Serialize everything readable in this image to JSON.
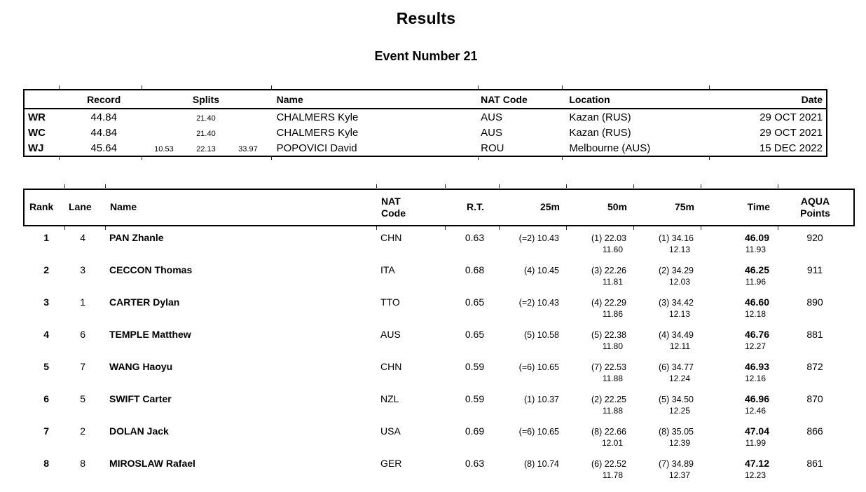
{
  "page": {
    "title": "Results",
    "subtitle": "Event Number 21"
  },
  "records_table": {
    "headers": {
      "type": "",
      "record": "Record",
      "splits": "Splits",
      "name": "Name",
      "nat_code": "NAT Code",
      "location": "Location",
      "date": "Date"
    },
    "rows": [
      {
        "type": "WR",
        "record": "44.84",
        "splits": [
          "",
          "21.40",
          ""
        ],
        "name": "CHALMERS Kyle",
        "nat_code": "AUS",
        "location": "Kazan (RUS)",
        "date": "29 OCT 2021"
      },
      {
        "type": "WC",
        "record": "44.84",
        "splits": [
          "",
          "21.40",
          ""
        ],
        "name": "CHALMERS Kyle",
        "nat_code": "AUS",
        "location": "Kazan (RUS)",
        "date": "29 OCT 2021"
      },
      {
        "type": "WJ",
        "record": "45.64",
        "splits": [
          "10.53",
          "22.13",
          "33.97"
        ],
        "name": "POPOVICI David",
        "nat_code": "ROU",
        "location": "Melbourne (AUS)",
        "date": "15 DEC 2022"
      }
    ]
  },
  "results_table": {
    "headers": {
      "rank": "Rank",
      "lane": "Lane",
      "name": "Name",
      "nat_code": "NAT\nCode",
      "rt": "R.T.",
      "m25": "25m",
      "m50": "50m",
      "m75": "75m",
      "time": "Time",
      "points": "AQUA\nPoints"
    },
    "rows": [
      {
        "rank": "1",
        "lane": "4",
        "name": "PAN Zhanle",
        "nat_code": "CHN",
        "rt": "0.63",
        "m25": "(=2) 10.43",
        "m50": "(1) 22.03",
        "m50_lap": "11.60",
        "m75": "(1) 34.16",
        "m75_lap": "12.13",
        "time": "46.09",
        "time_lap": "11.93",
        "points": "920"
      },
      {
        "rank": "2",
        "lane": "3",
        "name": "CECCON Thomas",
        "nat_code": "ITA",
        "rt": "0.68",
        "m25": "(4) 10.45",
        "m50": "(3) 22.26",
        "m50_lap": "11.81",
        "m75": "(2) 34.29",
        "m75_lap": "12.03",
        "time": "46.25",
        "time_lap": "11.96",
        "points": "911"
      },
      {
        "rank": "3",
        "lane": "1",
        "name": "CARTER Dylan",
        "nat_code": "TTO",
        "rt": "0.65",
        "m25": "(=2) 10.43",
        "m50": "(4) 22.29",
        "m50_lap": "11.86",
        "m75": "(3) 34.42",
        "m75_lap": "12.13",
        "time": "46.60",
        "time_lap": "12.18",
        "points": "890"
      },
      {
        "rank": "4",
        "lane": "6",
        "name": "TEMPLE Matthew",
        "nat_code": "AUS",
        "rt": "0.65",
        "m25": "(5) 10.58",
        "m50": "(5) 22.38",
        "m50_lap": "11.80",
        "m75": "(4) 34.49",
        "m75_lap": "12.11",
        "time": "46.76",
        "time_lap": "12.27",
        "points": "881"
      },
      {
        "rank": "5",
        "lane": "7",
        "name": "WANG Haoyu",
        "nat_code": "CHN",
        "rt": "0.59",
        "m25": "(=6) 10.65",
        "m50": "(7) 22.53",
        "m50_lap": "11.88",
        "m75": "(6) 34.77",
        "m75_lap": "12.24",
        "time": "46.93",
        "time_lap": "12.16",
        "points": "872"
      },
      {
        "rank": "6",
        "lane": "5",
        "name": "SWIFT Carter",
        "nat_code": "NZL",
        "rt": "0.59",
        "m25": "(1) 10.37",
        "m50": "(2) 22.25",
        "m50_lap": "11.88",
        "m75": "(5) 34.50",
        "m75_lap": "12.25",
        "time": "46.96",
        "time_lap": "12.46",
        "points": "870"
      },
      {
        "rank": "7",
        "lane": "2",
        "name": "DOLAN Jack",
        "nat_code": "USA",
        "rt": "0.69",
        "m25": "(=6) 10.65",
        "m50": "(8) 22.66",
        "m50_lap": "12.01",
        "m75": "(8) 35.05",
        "m75_lap": "12.39",
        "time": "47.04",
        "time_lap": "11.99",
        "points": "866"
      },
      {
        "rank": "8",
        "lane": "8",
        "name": "MIROSLAW Rafael",
        "nat_code": "GER",
        "rt": "0.63",
        "m25": "(8) 10.74",
        "m50": "(6) 22.52",
        "m50_lap": "11.78",
        "m75": "(7) 34.89",
        "m75_lap": "12.37",
        "time": "47.12",
        "time_lap": "12.23",
        "points": "861"
      }
    ]
  },
  "colors": {
    "text": "#000000",
    "background": "#ffffff",
    "border": "#000000"
  }
}
